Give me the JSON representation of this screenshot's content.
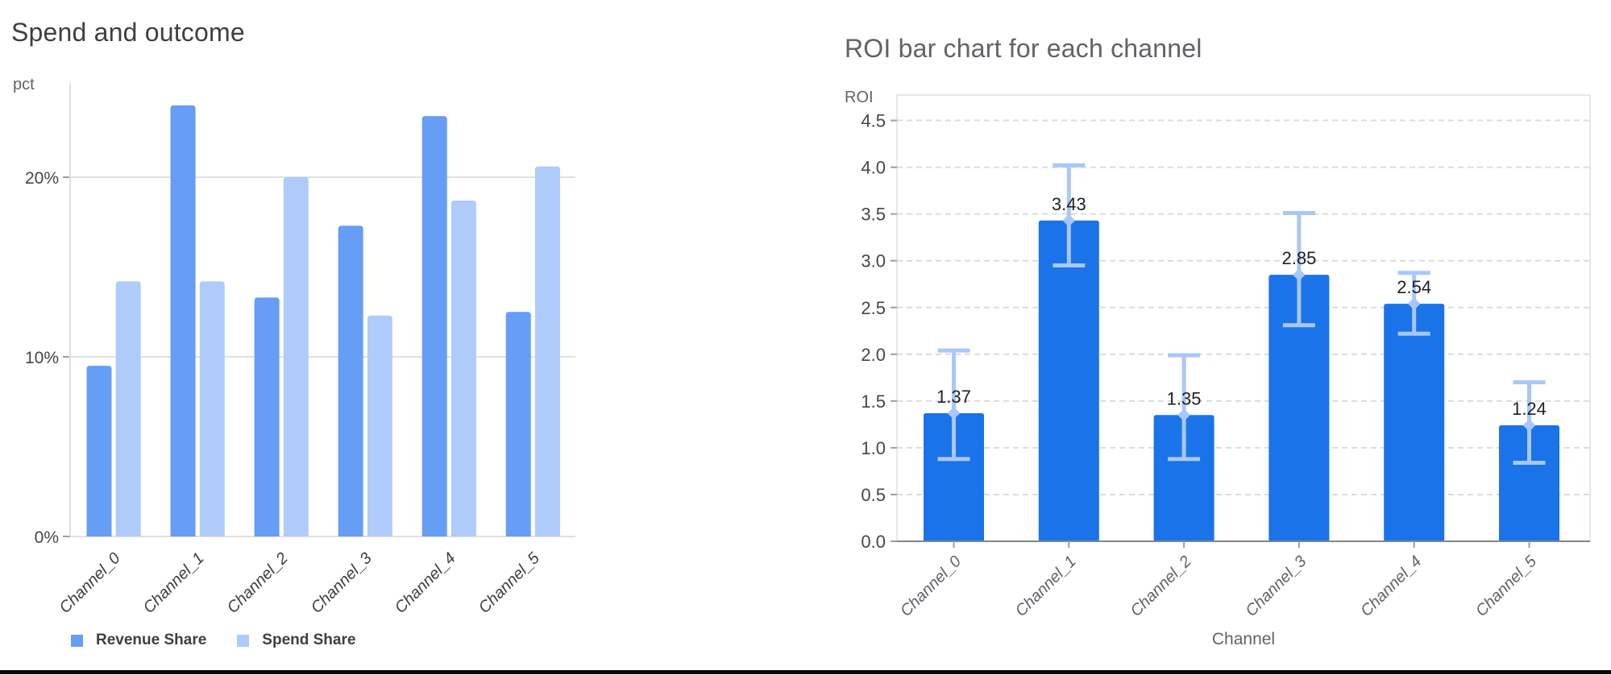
{
  "chart_data": [
    {
      "type": "bar",
      "title": "Spend and outcome",
      "ylabel": "pct",
      "categories": [
        "Channel_0",
        "Channel_1",
        "Channel_2",
        "Channel_3",
        "Channel_4",
        "Channel_5"
      ],
      "series": [
        {
          "name": "Revenue Share",
          "color": "#669df6",
          "values": [
            9.5,
            24.0,
            13.3,
            17.3,
            23.4,
            12.5
          ]
        },
        {
          "name": "Spend Share",
          "color": "#aecbfa",
          "values": [
            14.2,
            14.2,
            20.0,
            12.3,
            18.7,
            20.6
          ]
        }
      ],
      "yticks": [
        {
          "label": "0%",
          "value": 0
        },
        {
          "label": "10%",
          "value": 10
        },
        {
          "label": "20%",
          "value": 20
        }
      ],
      "ylim": [
        0,
        25.2
      ],
      "grid": "solid-horizontal",
      "legend_position": "bottom"
    },
    {
      "type": "bar",
      "title": "ROI bar chart for each channel",
      "ylabel": "ROI",
      "xlabel": "Channel",
      "categories": [
        "Channel_0",
        "Channel_1",
        "Channel_2",
        "Channel_3",
        "Channel_4",
        "Channel_5"
      ],
      "values": [
        1.37,
        3.43,
        1.35,
        2.85,
        2.54,
        1.24
      ],
      "bar_labels": [
        "1.37",
        "3.43",
        "1.35",
        "2.85",
        "2.54",
        "1.24"
      ],
      "error_low": [
        0.88,
        2.95,
        0.88,
        2.31,
        2.22,
        0.84
      ],
      "error_high": [
        2.04,
        4.02,
        1.99,
        3.51,
        2.87,
        1.7
      ],
      "bar_color": "#1a73e8",
      "error_color": "#a8c7fa",
      "ylim": [
        0,
        4.5
      ],
      "ytick_step": 0.5,
      "grid": "dashed-horizontal",
      "legend_position": "none"
    }
  ],
  "colors": {
    "grid_solid": "#e0e0e0",
    "grid_dashed": "#dadce0",
    "axis_line": "#80868b",
    "tick_mark": "#9aa0a6",
    "tick_label": "#444746",
    "bar_value_label": "#202124",
    "x_label_left": "#3c4043",
    "x_label_right": "#5f6368"
  }
}
